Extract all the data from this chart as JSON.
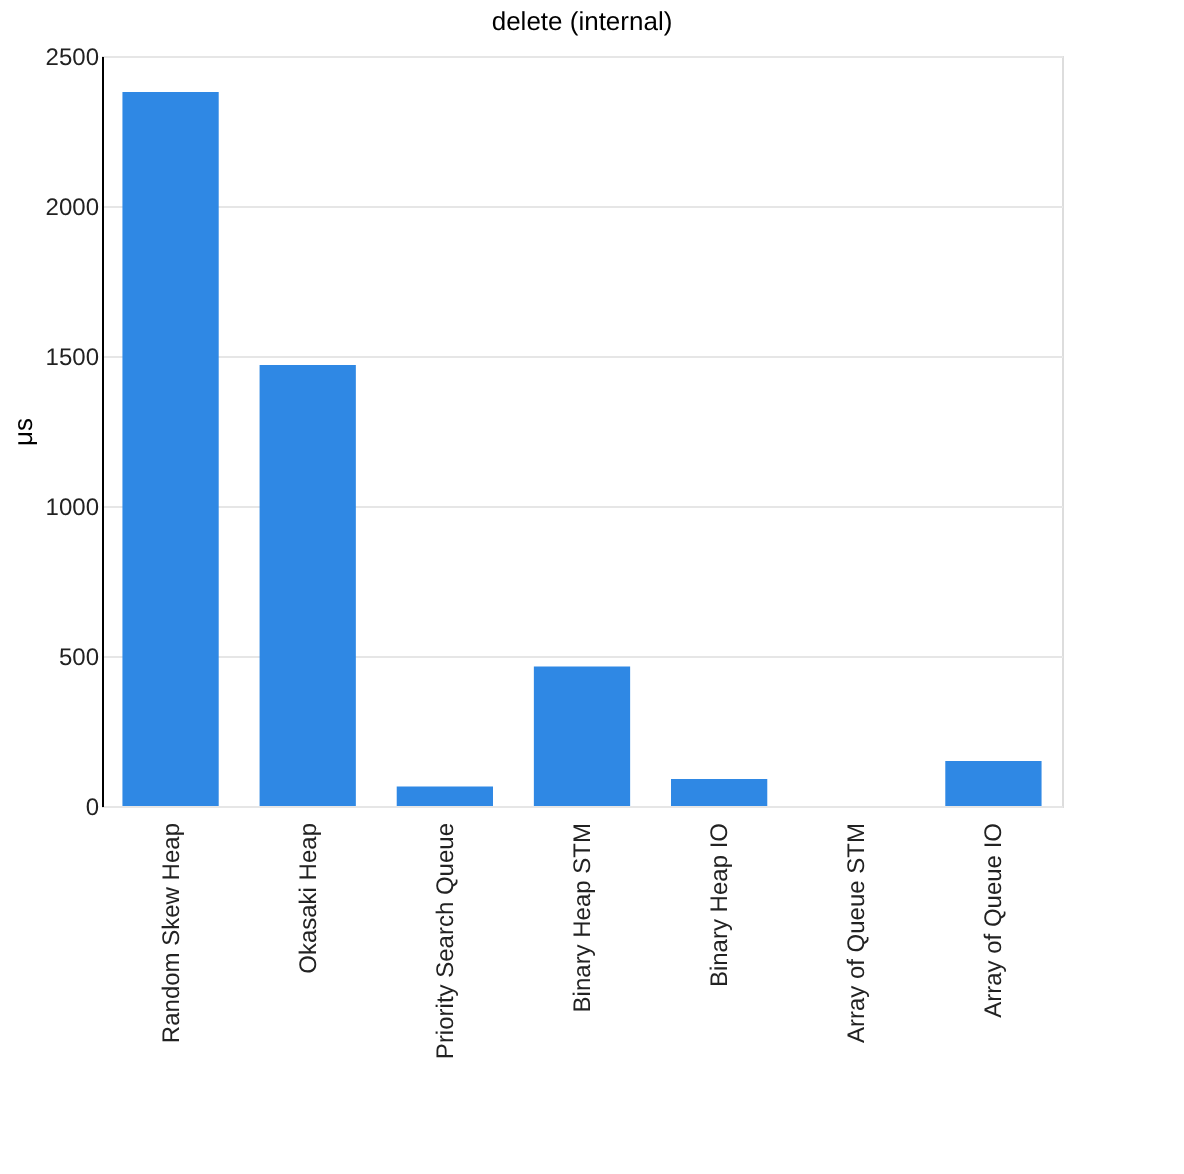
{
  "chart_data": {
    "type": "bar",
    "title": "delete (internal)",
    "ylabel": "μs",
    "categories": [
      "Random Skew Heap",
      "Okasaki Heap",
      "Priority Search Queue",
      "Binary Heap STM",
      "Binary Heap IO",
      "Array of Queue STM",
      "Array of Queue IO"
    ],
    "values": [
      2380,
      1470,
      65,
      465,
      90,
      0,
      150
    ],
    "color": "#2f88e4",
    "ylim": [
      0,
      2500
    ],
    "yticks": [
      0,
      500,
      1000,
      1500,
      2000,
      2500
    ],
    "grid": "y"
  }
}
